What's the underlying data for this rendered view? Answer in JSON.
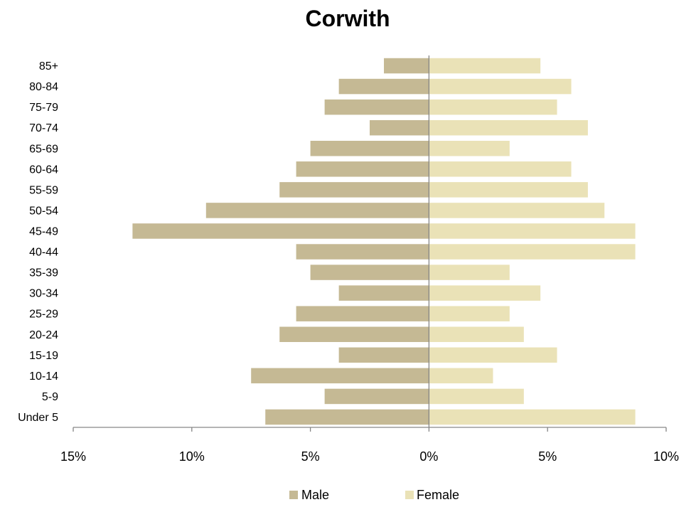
{
  "chart_data": {
    "type": "bar",
    "orientation": "horizontal",
    "subtype": "population-pyramid",
    "title": "Corwith",
    "categories": [
      "Under 5",
      "5-9",
      "10-14",
      "15-19",
      "20-24",
      "25-29",
      "30-34",
      "35-39",
      "40-44",
      "45-49",
      "50-54",
      "55-59",
      "60-64",
      "65-69",
      "70-74",
      "75-79",
      "80-84",
      "85+"
    ],
    "series": [
      {
        "name": "Male",
        "color": "#c5b994",
        "direction": "left",
        "values": [
          6.9,
          4.4,
          7.5,
          3.8,
          6.3,
          5.6,
          3.8,
          5.0,
          5.6,
          12.5,
          9.4,
          6.3,
          5.6,
          5.0,
          2.5,
          4.4,
          3.8,
          1.9
        ]
      },
      {
        "name": "Female",
        "color": "#eae2b7",
        "direction": "right",
        "values": [
          8.7,
          4.0,
          2.7,
          5.4,
          4.0,
          3.4,
          4.7,
          3.4,
          8.7,
          8.7,
          7.4,
          6.7,
          6.0,
          3.4,
          6.7,
          5.4,
          6.0,
          4.7
        ]
      }
    ],
    "xlim": [
      -15,
      10
    ],
    "xticks": [
      -15,
      -10,
      -5,
      0,
      5,
      10
    ],
    "xtick_labels": [
      "15%",
      "10%",
      "5%",
      "0%",
      "5%",
      "10%"
    ],
    "xlabel": "",
    "ylabel": "",
    "grid": false,
    "legend_position": "bottom"
  }
}
